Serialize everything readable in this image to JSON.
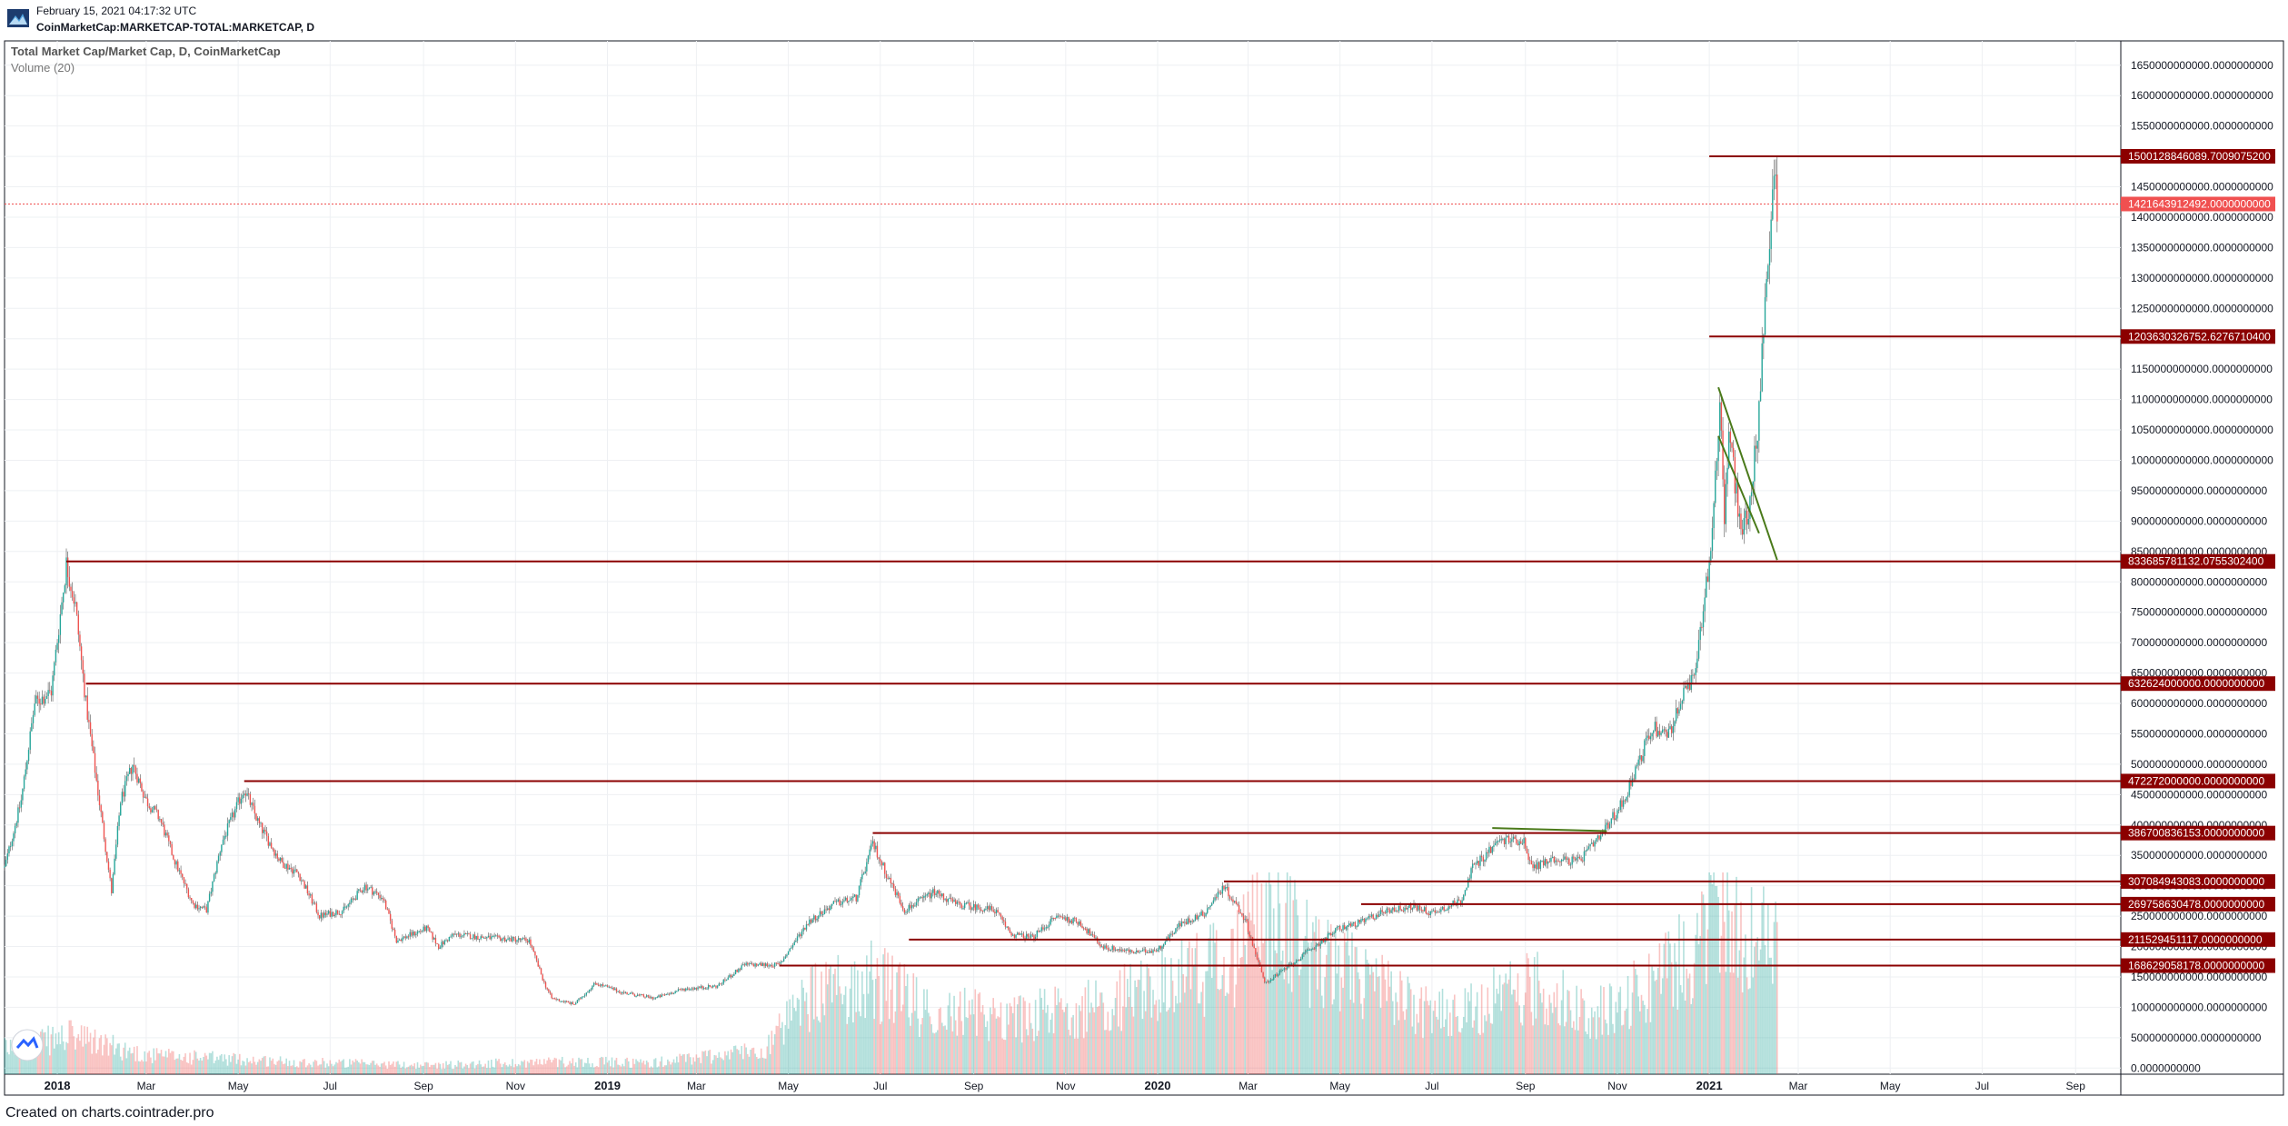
{
  "header": {
    "date": "February 15, 2021 04:17:32 UTC",
    "symbol": "CoinMarketCap:MARKETCAP-TOTAL:MARKETCAP, D"
  },
  "footer": {
    "text": "Created on charts.cointrader.pro"
  },
  "colors": {
    "up": "#26a69a",
    "down": "#ef5350",
    "level": "#8b0000",
    "current": "#f05050",
    "trend": "#4a7a1a",
    "grid": "#eef0f3"
  },
  "chart_data": {
    "type": "candlestick",
    "title": "Total Market Cap/Market Cap, D, CoinMarketCap",
    "subtitle": "Volume (20)",
    "x_range": [
      "2017-11-27",
      "2021-10-01"
    ],
    "y_range": [
      -10000000000,
      1690000000000
    ],
    "grid": true,
    "y_ticks": [
      0,
      50000000000,
      100000000000,
      150000000000,
      200000000000,
      250000000000,
      300000000000,
      350000000000,
      400000000000,
      450000000000,
      500000000000,
      550000000000,
      600000000000,
      650000000000,
      700000000000,
      750000000000,
      800000000000,
      850000000000,
      900000000000,
      950000000000,
      1000000000000,
      1050000000000,
      1100000000000,
      1150000000000,
      1200000000000,
      1250000000000,
      1300000000000,
      1350000000000,
      1400000000000,
      1450000000000,
      1500000000000,
      1550000000000,
      1600000000000,
      1650000000000
    ],
    "y_tick_labels": [
      "0.0000000000",
      "50000000000.0000000000",
      "100000000000.0000000000",
      "150000000000.0000000000",
      "200000000000.0000000000",
      "250000000000.0000000000",
      "300000000000.0000000000",
      "350000000000.0000000000",
      "400000000000.0000000000",
      "450000000000.0000000000",
      "500000000000.0000000000",
      "550000000000.0000000000",
      "600000000000.0000000000",
      "650000000000.0000000000",
      "700000000000.0000000000",
      "750000000000.0000000000",
      "800000000000.0000000000",
      "850000000000.0000000000",
      "900000000000.0000000000",
      "950000000000.0000000000",
      "1000000000000.0000000000",
      "1050000000000.0000000000",
      "1100000000000.0000000000",
      "1150000000000.0000000000",
      "1200000000000.0000000000",
      "1250000000000.0000000000",
      "1300000000000.0000000000",
      "1350000000000.0000000000",
      "1400000000000.0000000000",
      "1450000000000.0000000000",
      "1500000000000.0000000000",
      "1550000000000.0000000000",
      "1600000000000.0000000000",
      "1650000000000.0000000000"
    ],
    "x_ticks": [
      {
        "date": "2018-01-01",
        "label": "2018",
        "bold": true
      },
      {
        "date": "2018-03-01",
        "label": "Mar"
      },
      {
        "date": "2018-05-01",
        "label": "May"
      },
      {
        "date": "2018-07-01",
        "label": "Jul"
      },
      {
        "date": "2018-09-01",
        "label": "Sep"
      },
      {
        "date": "2018-11-01",
        "label": "Nov"
      },
      {
        "date": "2019-01-01",
        "label": "2019",
        "bold": true
      },
      {
        "date": "2019-03-01",
        "label": "Mar"
      },
      {
        "date": "2019-05-01",
        "label": "May"
      },
      {
        "date": "2019-07-01",
        "label": "Jul"
      },
      {
        "date": "2019-09-01",
        "label": "Sep"
      },
      {
        "date": "2019-11-01",
        "label": "Nov"
      },
      {
        "date": "2020-01-01",
        "label": "2020",
        "bold": true
      },
      {
        "date": "2020-03-01",
        "label": "Mar"
      },
      {
        "date": "2020-05-01",
        "label": "May"
      },
      {
        "date": "2020-07-01",
        "label": "Jul"
      },
      {
        "date": "2020-09-01",
        "label": "Sep"
      },
      {
        "date": "2020-11-01",
        "label": "Nov"
      },
      {
        "date": "2021-01-01",
        "label": "2021",
        "bold": true
      },
      {
        "date": "2021-03-01",
        "label": "Mar"
      },
      {
        "date": "2021-05-01",
        "label": "May"
      },
      {
        "date": "2021-07-01",
        "label": "Jul"
      },
      {
        "date": "2021-09-01",
        "label": "Sep"
      }
    ],
    "price_path": [
      [
        "2017-11-27",
        330000000000
      ],
      [
        "2017-12-08",
        440000000000
      ],
      [
        "2017-12-17",
        600000000000
      ],
      [
        "2017-12-28",
        620000000000
      ],
      [
        "2018-01-07",
        830000000000
      ],
      [
        "2018-01-13",
        760000000000
      ],
      [
        "2018-01-20",
        600000000000
      ],
      [
        "2018-02-06",
        290000000000
      ],
      [
        "2018-02-12",
        440000000000
      ],
      [
        "2018-02-20",
        500000000000
      ],
      [
        "2018-03-01",
        440000000000
      ],
      [
        "2018-03-10",
        410000000000
      ],
      [
        "2018-03-20",
        340000000000
      ],
      [
        "2018-04-01",
        270000000000
      ],
      [
        "2018-04-10",
        260000000000
      ],
      [
        "2018-04-20",
        370000000000
      ],
      [
        "2018-05-05",
        460000000000
      ],
      [
        "2018-05-15",
        400000000000
      ],
      [
        "2018-05-29",
        340000000000
      ],
      [
        "2018-06-10",
        320000000000
      ],
      [
        "2018-06-24",
        250000000000
      ],
      [
        "2018-07-10",
        260000000000
      ],
      [
        "2018-07-24",
        300000000000
      ],
      [
        "2018-08-05",
        280000000000
      ],
      [
        "2018-08-14",
        210000000000
      ],
      [
        "2018-09-03",
        230000000000
      ],
      [
        "2018-09-11",
        200000000000
      ],
      [
        "2018-09-21",
        220000000000
      ],
      [
        "2018-10-10",
        215000000000
      ],
      [
        "2018-11-10",
        210000000000
      ],
      [
        "2018-11-20",
        140000000000
      ],
      [
        "2018-11-25",
        115000000000
      ],
      [
        "2018-12-10",
        105000000000
      ],
      [
        "2018-12-24",
        140000000000
      ],
      [
        "2019-01-10",
        125000000000
      ],
      [
        "2019-02-01",
        115000000000
      ],
      [
        "2019-02-20",
        130000000000
      ],
      [
        "2019-03-15",
        135000000000
      ],
      [
        "2019-04-02",
        170000000000
      ],
      [
        "2019-04-25",
        170000000000
      ],
      [
        "2019-05-14",
        240000000000
      ],
      [
        "2019-05-31",
        270000000000
      ],
      [
        "2019-06-15",
        280000000000
      ],
      [
        "2019-06-26",
        370000000000
      ],
      [
        "2019-07-05",
        320000000000
      ],
      [
        "2019-07-17",
        260000000000
      ],
      [
        "2019-08-06",
        290000000000
      ],
      [
        "2019-08-20",
        270000000000
      ],
      [
        "2019-09-15",
        260000000000
      ],
      [
        "2019-09-26",
        220000000000
      ],
      [
        "2019-10-10",
        215000000000
      ],
      [
        "2019-10-26",
        250000000000
      ],
      [
        "2019-11-10",
        240000000000
      ],
      [
        "2019-11-25",
        200000000000
      ],
      [
        "2019-12-18",
        190000000000
      ],
      [
        "2020-01-01",
        195000000000
      ],
      [
        "2020-01-15",
        235000000000
      ],
      [
        "2020-02-01",
        255000000000
      ],
      [
        "2020-02-14",
        300000000000
      ],
      [
        "2020-02-28",
        245000000000
      ],
      [
        "2020-03-12",
        140000000000
      ],
      [
        "2020-03-18",
        150000000000
      ],
      [
        "2020-04-01",
        175000000000
      ],
      [
        "2020-04-30",
        230000000000
      ],
      [
        "2020-05-15",
        240000000000
      ],
      [
        "2020-06-01",
        260000000000
      ],
      [
        "2020-06-20",
        265000000000
      ],
      [
        "2020-07-01",
        255000000000
      ],
      [
        "2020-07-20",
        275000000000
      ],
      [
        "2020-07-28",
        330000000000
      ],
      [
        "2020-08-15",
        375000000000
      ],
      [
        "2020-08-31",
        375000000000
      ],
      [
        "2020-09-05",
        330000000000
      ],
      [
        "2020-09-20",
        345000000000
      ],
      [
        "2020-10-06",
        340000000000
      ],
      [
        "2020-10-21",
        380000000000
      ],
      [
        "2020-11-05",
        440000000000
      ],
      [
        "2020-11-24",
        560000000000
      ],
      [
        "2020-12-05",
        550000000000
      ],
      [
        "2020-12-16",
        620000000000
      ],
      [
        "2020-12-22",
        640000000000
      ],
      [
        "2020-12-27",
        740000000000
      ],
      [
        "2021-01-02",
        850000000000
      ],
      [
        "2021-01-08",
        1100000000000
      ],
      [
        "2021-01-11",
        900000000000
      ],
      [
        "2021-01-14",
        1050000000000
      ],
      [
        "2021-01-22",
        880000000000
      ],
      [
        "2021-01-28",
        930000000000
      ],
      [
        "2021-02-03",
        1080000000000
      ],
      [
        "2021-02-08",
        1300000000000
      ],
      [
        "2021-02-12",
        1450000000000
      ],
      [
        "2021-02-14",
        1470000000000
      ],
      [
        "2021-02-15",
        1421643912492
      ]
    ],
    "current_price": {
      "value": 1421643912492,
      "label": "1421643912492.0000000000"
    },
    "levels": [
      {
        "start": "2021-01-01",
        "value": 1500128846089,
        "label": "1500128846089.7009075200"
      },
      {
        "start": "2021-01-01",
        "value": 1203630326752,
        "label": "1203630326752.6276710400"
      },
      {
        "start": "2018-01-07",
        "value": 833685781132,
        "label": "833685781132.0755302400"
      },
      {
        "start": "2018-01-20",
        "value": 632624000000,
        "label": "632624000000.0000000000"
      },
      {
        "start": "2018-05-05",
        "value": 472272000000,
        "label": "472272000000.0000000000"
      },
      {
        "start": "2019-06-26",
        "value": 386700836153,
        "label": "386700836153.0000000000"
      },
      {
        "start": "2020-02-14",
        "value": 307084943083,
        "label": "307084943083.0000000000"
      },
      {
        "start": "2020-05-15",
        "value": 269758630478,
        "label": "269758630478.0000000000"
      },
      {
        "start": "2019-07-20",
        "value": 211529451117,
        "label": "211529451117.0000000000"
      },
      {
        "start": "2019-04-25",
        "value": 168629058178,
        "label": "168629058178.0000000000"
      }
    ],
    "trendlines": [
      {
        "x1": "2021-01-07",
        "y1": 1120000000000,
        "x2": "2021-02-15",
        "y2": 836000000000
      },
      {
        "x1": "2021-01-07",
        "y1": 1040000000000,
        "x2": "2021-02-03",
        "y2": 880000000000
      },
      {
        "x1": "2020-08-10",
        "y1": 395000000000,
        "x2": "2020-10-25",
        "y2": 390000000000
      }
    ],
    "volume_path": [
      [
        "2017-11-27",
        20
      ],
      [
        "2018-01-10",
        30
      ],
      [
        "2018-03-01",
        15
      ],
      [
        "2018-06-01",
        10
      ],
      [
        "2018-09-01",
        7
      ],
      [
        "2018-12-01",
        10
      ],
      [
        "2019-02-01",
        9
      ],
      [
        "2019-04-15",
        20
      ],
      [
        "2019-05-15",
        60
      ],
      [
        "2019-06-26",
        75
      ],
      [
        "2019-08-01",
        50
      ],
      [
        "2019-10-01",
        45
      ],
      [
        "2019-11-15",
        52
      ],
      [
        "2020-01-15",
        75
      ],
      [
        "2020-02-20",
        90
      ],
      [
        "2020-03-12",
        130
      ],
      [
        "2020-04-15",
        90
      ],
      [
        "2020-05-10",
        80
      ],
      [
        "2020-06-15",
        55
      ],
      [
        "2020-07-20",
        45
      ],
      [
        "2020-08-10",
        60
      ],
      [
        "2020-09-10",
        70
      ],
      [
        "2020-10-15",
        45
      ],
      [
        "2020-11-20",
        70
      ],
      [
        "2020-12-25",
        100
      ],
      [
        "2021-01-08",
        145
      ],
      [
        "2021-01-20",
        110
      ],
      [
        "2021-02-15",
        105
      ]
    ],
    "volume_max": 160
  }
}
